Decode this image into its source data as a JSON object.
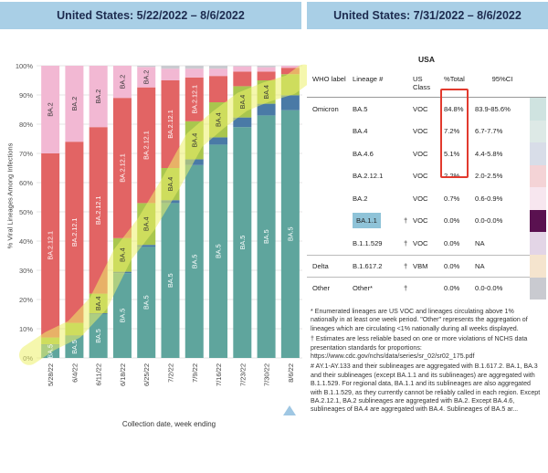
{
  "headers": {
    "left": "United States: 5/22/2022 – 8/6/2022",
    "right": "United States: 7/31/2022 – 8/6/2022"
  },
  "colors": {
    "BA.5": "#5fa59d",
    "BA.4.6": "#4a7aa6",
    "BA.4": "#a9c64e",
    "BA.2.12.1": "#e26464",
    "BA.2": "#f2b8d3",
    "BA.1.1": "#5a1150",
    "B.1.1.529": "#d9c4db",
    "B.1.617.2": "#f3dcbf",
    "Other": "#c9cad0",
    "highlight": "#ecf069",
    "header_bg": "#a9cfe6"
  },
  "chart_data": {
    "type": "bar",
    "stacked": true,
    "xlabel": "Collection date, week ending",
    "ylabel": "% Viral Lineages Among Infections",
    "ylim": [
      0,
      100
    ],
    "yticks": [
      "0%",
      "10%",
      "20%",
      "30%",
      "40%",
      "50%",
      "60%",
      "70%",
      "80%",
      "90%",
      "100%"
    ],
    "categories": [
      "5/28/22",
      "6/4/22",
      "6/11/22",
      "6/18/22",
      "6/25/22",
      "7/2/22",
      "7/9/22",
      "7/16/22",
      "7/23/22",
      "7/30/22",
      "8/6/22"
    ],
    "series": [
      {
        "name": "BA.5",
        "values": [
          4.5,
          7.5,
          15,
          29,
          38,
          53,
          66,
          73,
          79,
          83,
          84.8
        ]
      },
      {
        "name": "BA.4.6",
        "values": [
          0.2,
          0.2,
          0.3,
          0.5,
          0.7,
          1,
          2,
          2.5,
          3.3,
          4,
          5.1
        ]
      },
      {
        "name": "BA.4",
        "values": [
          2.3,
          4.3,
          6.7,
          11.5,
          14.3,
          11,
          13,
          12,
          10.7,
          8,
          7.2
        ]
      },
      {
        "name": "BA.2.12.1",
        "values": [
          63,
          62,
          57,
          48,
          39.6,
          30,
          15,
          9,
          5,
          3,
          2.2
        ]
      },
      {
        "name": "BA.2",
        "values": [
          30,
          26,
          21,
          11,
          7,
          4,
          3,
          2.5,
          1.8,
          1.5,
          0.7
        ]
      },
      {
        "name": "Other",
        "values": [
          0,
          0,
          0,
          0,
          0.4,
          1,
          1,
          1,
          0.2,
          0.5,
          0
        ]
      }
    ],
    "segment_labels": [
      {
        "col": 0,
        "series": "BA.5",
        "text": "BA.5"
      },
      {
        "col": 0,
        "series": "BA.2.12.1",
        "text": "BA.2.12.1"
      },
      {
        "col": 0,
        "series": "BA.2",
        "text": "BA.2"
      },
      {
        "col": 1,
        "series": "BA.5",
        "text": "BA.5"
      },
      {
        "col": 1,
        "series": "BA.2.12.1",
        "text": "BA.2.12.1"
      },
      {
        "col": 1,
        "series": "BA.2",
        "text": "BA.2"
      },
      {
        "col": 2,
        "series": "BA.5",
        "text": "BA.5"
      },
      {
        "col": 2,
        "series": "BA.4",
        "text": "BA.4"
      },
      {
        "col": 2,
        "series": "BA.2.12.1",
        "text": "BA.2.12.1"
      },
      {
        "col": 2,
        "series": "BA.2",
        "text": "BA.2"
      },
      {
        "col": 3,
        "series": "BA.5",
        "text": "BA.5"
      },
      {
        "col": 3,
        "series": "BA.4",
        "text": "BA.4"
      },
      {
        "col": 3,
        "series": "BA.2.12.1",
        "text": "BA.2.12.1"
      },
      {
        "col": 3,
        "series": "BA.2",
        "text": "BA.2"
      },
      {
        "col": 4,
        "series": "BA.5",
        "text": "BA.5"
      },
      {
        "col": 4,
        "series": "BA.4",
        "text": "BA.4"
      },
      {
        "col": 4,
        "series": "BA.2.12.1",
        "text": "BA.2.12.1"
      },
      {
        "col": 4,
        "series": "BA.2",
        "text": "BA.2"
      },
      {
        "col": 5,
        "series": "BA.5",
        "text": "BA.5"
      },
      {
        "col": 5,
        "series": "BA.4",
        "text": "BA.4"
      },
      {
        "col": 5,
        "series": "BA.2.12.1",
        "text": "BA.2.12.1"
      },
      {
        "col": 6,
        "series": "BA.5",
        "text": "BA.5"
      },
      {
        "col": 6,
        "series": "BA.4",
        "text": "BA.4"
      },
      {
        "col": 6,
        "series": "BA.2.12.1",
        "text": "BA.2.12.1"
      },
      {
        "col": 7,
        "series": "BA.5",
        "text": "BA.5"
      },
      {
        "col": 7,
        "series": "BA.4",
        "text": "BA.4"
      },
      {
        "col": 8,
        "series": "BA.5",
        "text": "BA.5"
      },
      {
        "col": 8,
        "series": "BA.4",
        "text": "BA.4"
      },
      {
        "col": 9,
        "series": "BA.5",
        "text": "BA.5"
      },
      {
        "col": 9,
        "series": "BA.4",
        "text": "BA.4"
      },
      {
        "col": 10,
        "series": "BA.5",
        "text": "BA.5"
      }
    ]
  },
  "table": {
    "region": "USA",
    "columns": [
      "WHO label",
      "Lineage #",
      "US Class",
      "%Total",
      "95%CI"
    ],
    "rows": [
      {
        "who": "Omicron",
        "lineage": "BA.5",
        "dagger": "",
        "cls": "VOC",
        "pct": "84.8%",
        "ci": "83.9-85.6%",
        "swatch": "#cfe3e0",
        "sep": true
      },
      {
        "who": "",
        "lineage": "BA.4",
        "dagger": "",
        "cls": "VOC",
        "pct": "7.2%",
        "ci": "6.7-7.7%",
        "swatch": "#dde9e6",
        "sep": false
      },
      {
        "who": "",
        "lineage": "BA.4.6",
        "dagger": "",
        "cls": "VOC",
        "pct": "5.1%",
        "ci": "4.4-5.8%",
        "swatch": "#d8dde8",
        "sep": false
      },
      {
        "who": "",
        "lineage": "BA.2.12.1",
        "dagger": "",
        "cls": "VOC",
        "pct": "2.2%",
        "ci": "2.0-2.5%",
        "swatch": "#f4d3d6",
        "sep": false
      },
      {
        "who": "",
        "lineage": "BA.2",
        "dagger": "",
        "cls": "VOC",
        "pct": "0.7%",
        "ci": "0.6-0.9%",
        "swatch": "#f7e6ef",
        "sep": false
      },
      {
        "who": "",
        "lineage": "BA.1.1",
        "dagger": "†",
        "cls": "VOC",
        "pct": "0.0%",
        "ci": "0.0-0.0%",
        "swatch": "#5a1150",
        "sep": false,
        "highlight": true
      },
      {
        "who": "",
        "lineage": "B.1.1.529",
        "dagger": "†",
        "cls": "VOC",
        "pct": "0.0%",
        "ci": "NA",
        "swatch": "#e3d5e6",
        "sep": false
      },
      {
        "who": "Delta",
        "lineage": "B.1.617.2",
        "dagger": "†",
        "cls": "VBM",
        "pct": "0.0%",
        "ci": "NA",
        "swatch": "#f5e4ce",
        "sep": true
      },
      {
        "who": "Other",
        "lineage": "Other*",
        "dagger": "†",
        "cls": "",
        "pct": "0.0%",
        "ci": "0.0-0.0%",
        "swatch": "#c9cad0",
        "sep": true
      }
    ]
  },
  "footnotes": {
    "f1": "*      Enumerated lineages are US VOC and lineages circulating above 1% nationally in at least one week period. \"Other\" represents the aggregation of lineages which are circulating <1% nationally during all weeks displayed.",
    "f2": "†      Estimates are less reliable based on one or more violations of NCHS data presentation standards for proportions: https://www.cdc.gov/nchs/data/series/sr_02/sr02_175.pdf",
    "f3": "#      AY.1-AY.133 and their sublineages are aggregated with B.1.617.2. BA.1, BA.3 and their sublineages (except BA.1.1 and its sublineages) are aggregated with B.1.1.529. For regional data, BA.1.1 and its sublineages are also aggregated with B.1.1.529, as they currently cannot be reliably called in each region. Except BA.2.12.1, BA.2 sublineages are aggregated with BA.2. Except BA.4.6, sublineages of BA.4 are aggregated with BA.4. Sublineages of BA.5 ar..."
  }
}
